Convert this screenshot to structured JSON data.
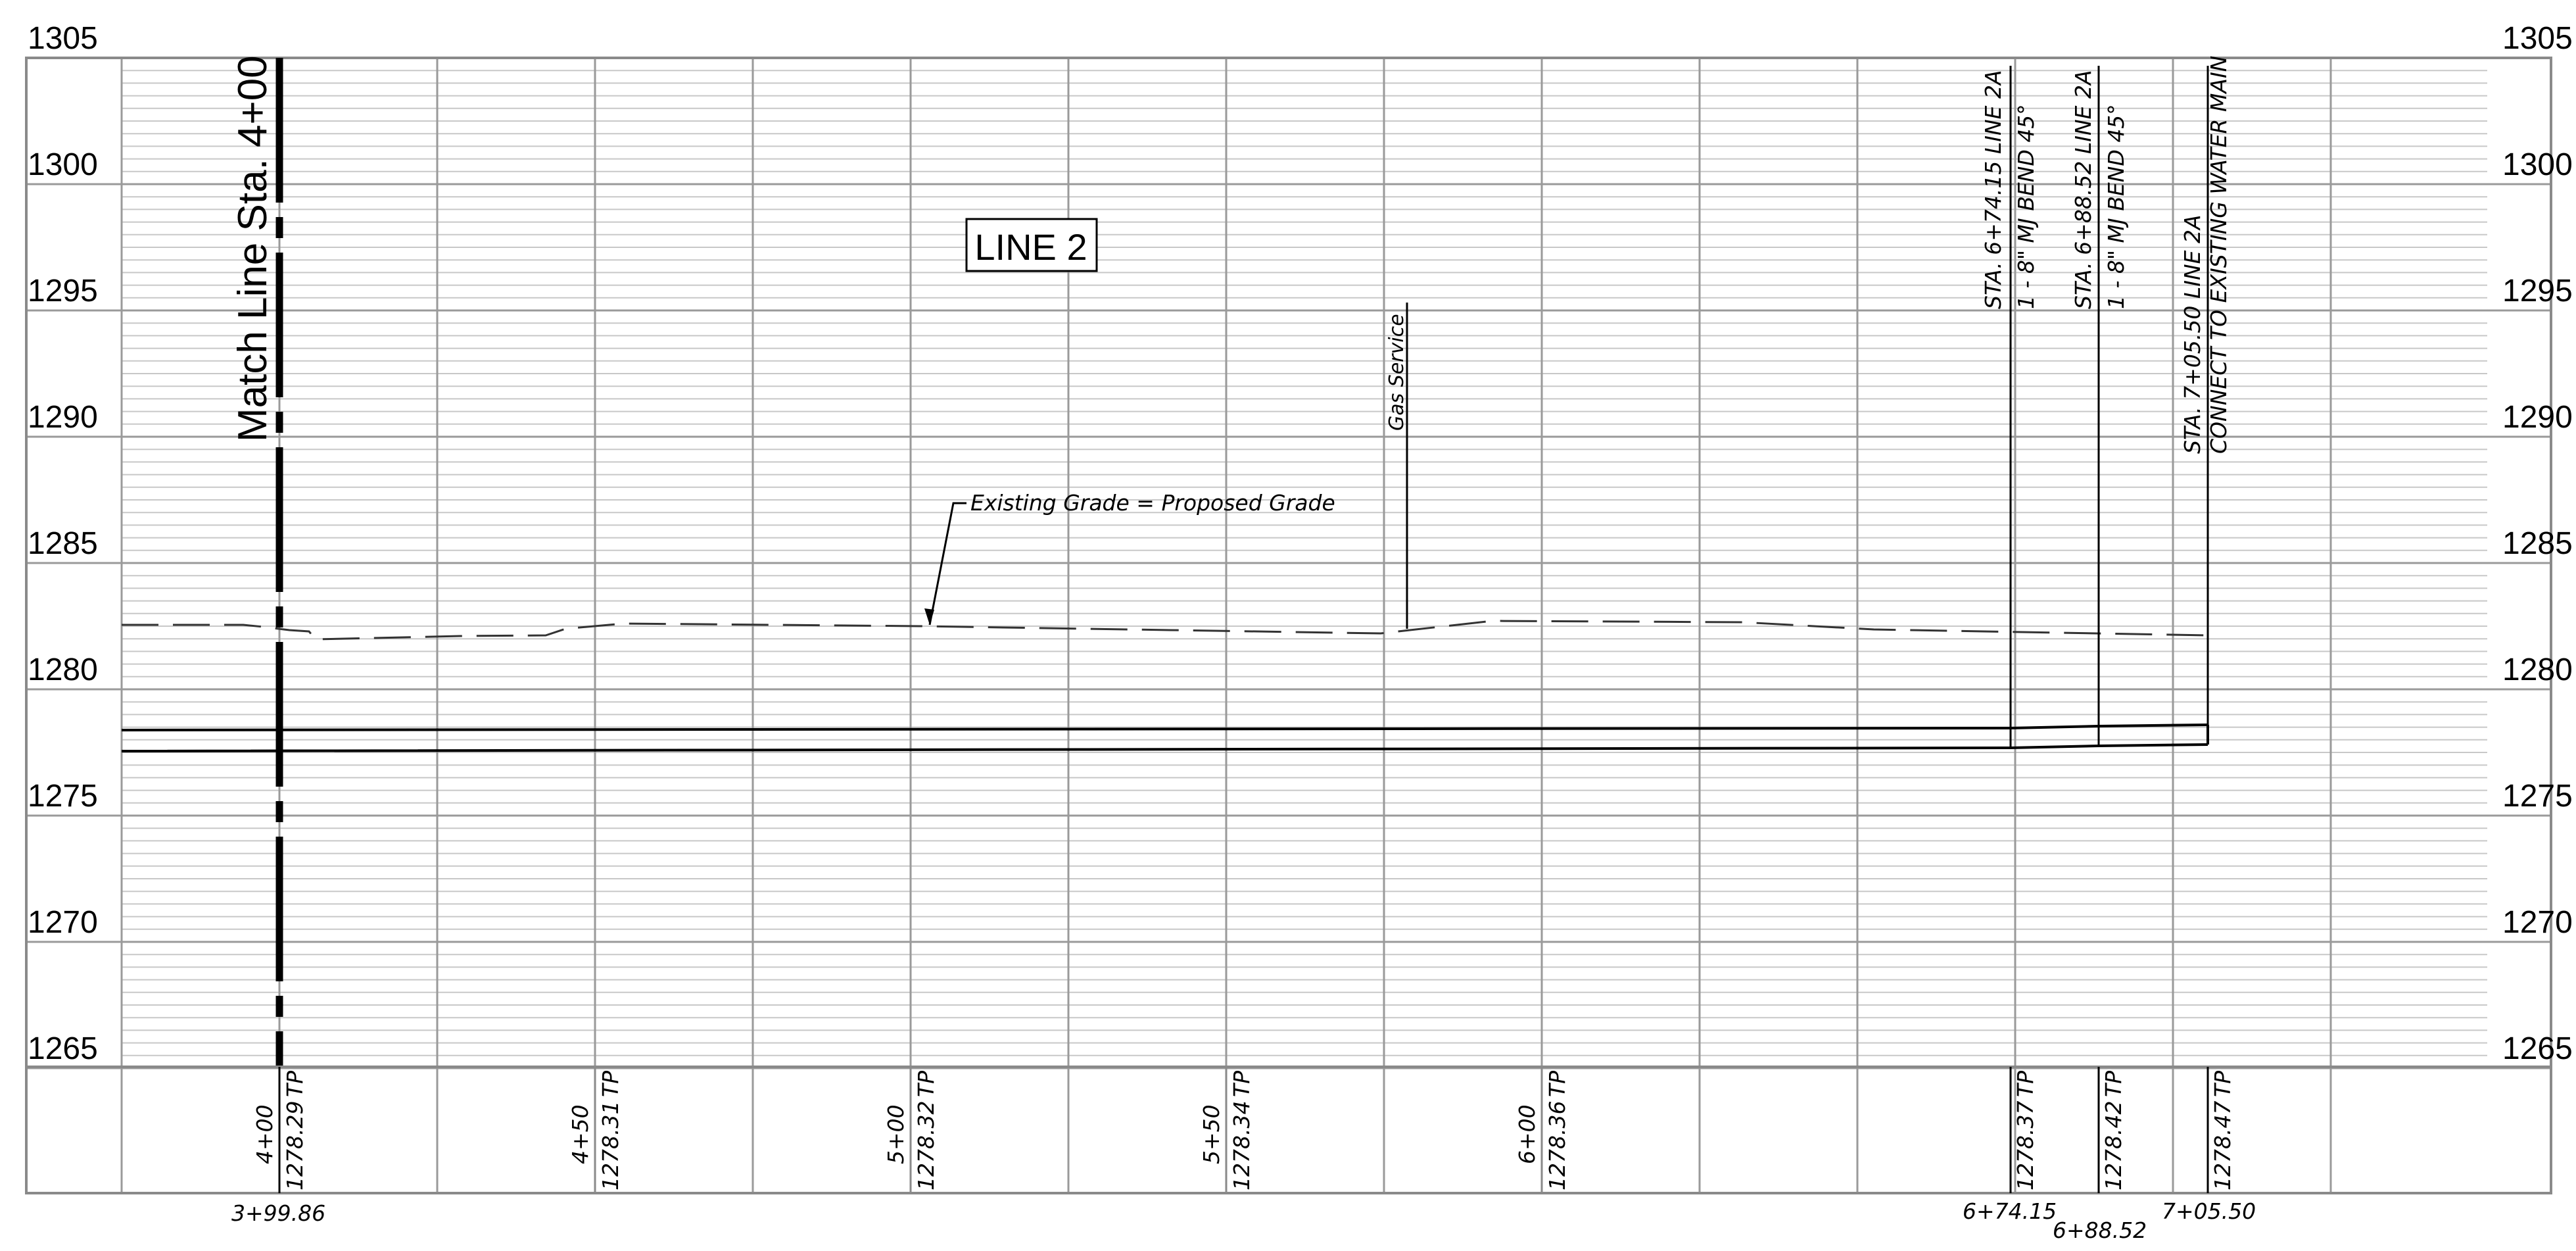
{
  "elevation_labels": [
    "1305",
    "1300",
    "1295",
    "1290",
    "1285",
    "1280",
    "1275",
    "1270",
    "1265"
  ],
  "match_line_label": "Match Line Sta. 4+00",
  "title_box_label": "LINE 2",
  "gas_service_label": "Gas Service",
  "grade_note": "Existing Grade = Proposed Grade",
  "callouts": {
    "c1_line1": "STA. 6+74.15 LINE 2A",
    "c1_line2": "1 - 8\" MJ BEND 45°",
    "c2_line1": "STA. 6+88.52 LINE 2A",
    "c2_line2": "1 - 8\" MJ BEND 45°",
    "c3_line1": "STA. 7+05.50 LINE 2A",
    "c3_line2": "CONNECT TO EXISTING WATER MAIN"
  },
  "stations": {
    "s1": "4+00",
    "s1_elev": "1278.29",
    "s2": "4+50",
    "s2_elev": "1278.31",
    "s3": "5+00",
    "s3_elev": "1278.32",
    "s4": "5+50",
    "s4_elev": "1278.34",
    "s5": "6+00",
    "s5_elev": "1278.36",
    "s6_elev": "1278.37",
    "s7_elev": "1278.42",
    "s8_elev": "1278.47"
  },
  "tp_label": "TP",
  "bottom_stations": {
    "b1": "3+99.86",
    "b2": "6+74.15",
    "b3": "6+88.52",
    "b4": "7+05.50"
  }
}
